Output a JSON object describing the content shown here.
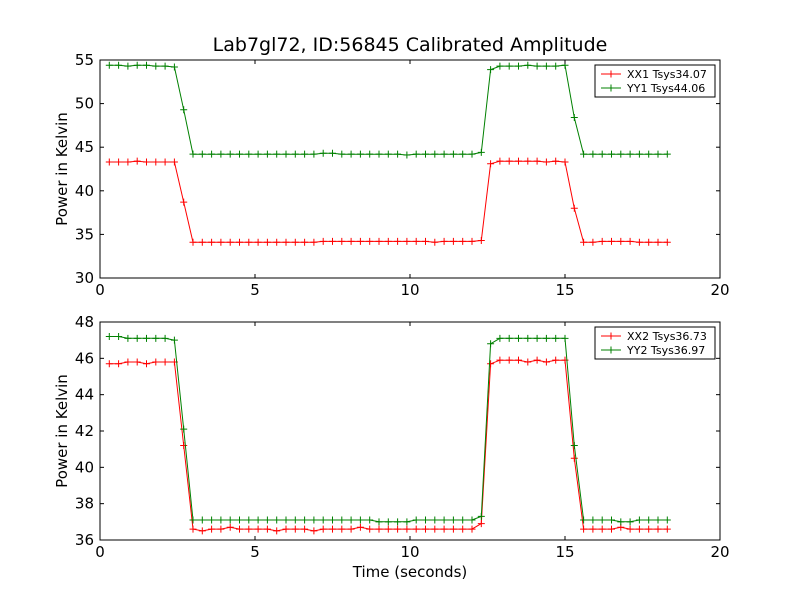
{
  "chart_title": "Lab7gl72, ID:56845 Calibrated Amplitude",
  "chart_data": [
    {
      "type": "line",
      "xlabel": "",
      "ylabel": "Power in Kelvin",
      "xlim": [
        0,
        20
      ],
      "ylim": [
        30,
        55
      ],
      "xticks": [
        0,
        5,
        10,
        15,
        20
      ],
      "yticks": [
        30,
        35,
        40,
        45,
        50,
        55
      ],
      "grid": false,
      "legend_position": "top-right",
      "series": [
        {
          "name": "XX1 Tsys34.07",
          "color": "#ff0000",
          "x": [
            0.3,
            0.6,
            0.9,
            1.2,
            1.5,
            1.8,
            2.1,
            2.4,
            2.7,
            3.0,
            3.3,
            3.6,
            3.9,
            4.2,
            4.5,
            4.8,
            5.1,
            5.4,
            5.7,
            6.0,
            6.3,
            6.6,
            6.9,
            7.2,
            7.5,
            7.8,
            8.1,
            8.4,
            8.7,
            9.0,
            9.3,
            9.6,
            9.9,
            10.2,
            10.5,
            10.8,
            11.1,
            11.4,
            11.7,
            12.0,
            12.3,
            12.6,
            12.9,
            13.2,
            13.5,
            13.8,
            14.1,
            14.4,
            14.7,
            15.0,
            15.3,
            15.6,
            15.9,
            16.2,
            16.5,
            16.8,
            17.1,
            17.4,
            17.7,
            18.0,
            18.3
          ],
          "values": [
            43.3,
            43.3,
            43.3,
            43.4,
            43.3,
            43.3,
            43.3,
            43.3,
            38.7,
            34.1,
            34.1,
            34.1,
            34.1,
            34.1,
            34.1,
            34.1,
            34.1,
            34.1,
            34.1,
            34.1,
            34.1,
            34.1,
            34.1,
            34.2,
            34.2,
            34.2,
            34.2,
            34.2,
            34.2,
            34.2,
            34.2,
            34.2,
            34.2,
            34.2,
            34.2,
            34.1,
            34.2,
            34.2,
            34.2,
            34.2,
            34.3,
            43.1,
            43.4,
            43.4,
            43.4,
            43.4,
            43.4,
            43.3,
            43.4,
            43.3,
            38.0,
            34.1,
            34.1,
            34.2,
            34.2,
            34.2,
            34.2,
            34.1,
            34.1,
            34.1,
            34.1
          ]
        },
        {
          "name": "YY1 Tsys44.06",
          "color": "#008000",
          "x": [
            0.3,
            0.6,
            0.9,
            1.2,
            1.5,
            1.8,
            2.1,
            2.4,
            2.7,
            3.0,
            3.3,
            3.6,
            3.9,
            4.2,
            4.5,
            4.8,
            5.1,
            5.4,
            5.7,
            6.0,
            6.3,
            6.6,
            6.9,
            7.2,
            7.5,
            7.8,
            8.1,
            8.4,
            8.7,
            9.0,
            9.3,
            9.6,
            9.9,
            10.2,
            10.5,
            10.8,
            11.1,
            11.4,
            11.7,
            12.0,
            12.3,
            12.6,
            12.9,
            13.2,
            13.5,
            13.8,
            14.1,
            14.4,
            14.7,
            15.0,
            15.3,
            15.6,
            15.9,
            16.2,
            16.5,
            16.8,
            17.1,
            17.4,
            17.7,
            18.0,
            18.3
          ],
          "values": [
            54.4,
            54.4,
            54.3,
            54.4,
            54.4,
            54.3,
            54.3,
            54.2,
            49.3,
            44.2,
            44.2,
            44.2,
            44.2,
            44.2,
            44.2,
            44.2,
            44.2,
            44.2,
            44.2,
            44.2,
            44.2,
            44.2,
            44.2,
            44.3,
            44.3,
            44.2,
            44.2,
            44.2,
            44.2,
            44.2,
            44.2,
            44.2,
            44.1,
            44.2,
            44.2,
            44.2,
            44.2,
            44.2,
            44.2,
            44.2,
            44.4,
            53.9,
            54.3,
            54.3,
            54.3,
            54.4,
            54.3,
            54.3,
            54.3,
            54.4,
            48.4,
            44.2,
            44.2,
            44.2,
            44.2,
            44.2,
            44.2,
            44.2,
            44.2,
            44.2,
            44.2
          ]
        }
      ]
    },
    {
      "type": "line",
      "xlabel": "Time (seconds)",
      "ylabel": "Power in Kelvin",
      "xlim": [
        0,
        20
      ],
      "ylim": [
        36,
        48
      ],
      "xticks": [
        0,
        5,
        10,
        15,
        20
      ],
      "yticks": [
        36,
        38,
        40,
        42,
        44,
        46,
        48
      ],
      "grid": false,
      "legend_position": "top-right",
      "series": [
        {
          "name": "XX2 Tsys36.73",
          "color": "#ff0000",
          "x": [
            0.3,
            0.6,
            0.9,
            1.2,
            1.5,
            1.8,
            2.1,
            2.4,
            2.7,
            3.0,
            3.3,
            3.6,
            3.9,
            4.2,
            4.5,
            4.8,
            5.1,
            5.4,
            5.7,
            6.0,
            6.3,
            6.6,
            6.9,
            7.2,
            7.5,
            7.8,
            8.1,
            8.4,
            8.7,
            9.0,
            9.3,
            9.6,
            9.9,
            10.2,
            10.5,
            10.8,
            11.1,
            11.4,
            11.7,
            12.0,
            12.3,
            12.6,
            12.9,
            13.2,
            13.5,
            13.8,
            14.1,
            14.4,
            14.7,
            15.0,
            15.3,
            15.6,
            15.9,
            16.2,
            16.5,
            16.8,
            17.1,
            17.4,
            17.7,
            18.0,
            18.3
          ],
          "values": [
            45.7,
            45.7,
            45.8,
            45.8,
            45.7,
            45.8,
            45.8,
            45.8,
            41.2,
            36.6,
            36.5,
            36.6,
            36.6,
            36.7,
            36.6,
            36.6,
            36.6,
            36.6,
            36.5,
            36.6,
            36.6,
            36.6,
            36.5,
            36.6,
            36.6,
            36.6,
            36.6,
            36.7,
            36.6,
            36.6,
            36.6,
            36.6,
            36.6,
            36.6,
            36.6,
            36.6,
            36.6,
            36.6,
            36.6,
            36.6,
            36.9,
            45.7,
            45.9,
            45.9,
            45.9,
            45.8,
            45.9,
            45.8,
            45.9,
            45.9,
            40.5,
            36.6,
            36.6,
            36.6,
            36.6,
            36.7,
            36.6,
            36.6,
            36.6,
            36.6,
            36.6
          ]
        },
        {
          "name": "YY2 Tsys36.97",
          "color": "#008000",
          "x": [
            0.3,
            0.6,
            0.9,
            1.2,
            1.5,
            1.8,
            2.1,
            2.4,
            2.7,
            3.0,
            3.3,
            3.6,
            3.9,
            4.2,
            4.5,
            4.8,
            5.1,
            5.4,
            5.7,
            6.0,
            6.3,
            6.6,
            6.9,
            7.2,
            7.5,
            7.8,
            8.1,
            8.4,
            8.7,
            9.0,
            9.3,
            9.6,
            9.9,
            10.2,
            10.5,
            10.8,
            11.1,
            11.4,
            11.7,
            12.0,
            12.3,
            12.6,
            12.9,
            13.2,
            13.5,
            13.8,
            14.1,
            14.4,
            14.7,
            15.0,
            15.3,
            15.6,
            15.9,
            16.2,
            16.5,
            16.8,
            17.1,
            17.4,
            17.7,
            18.0,
            18.3
          ],
          "values": [
            47.2,
            47.2,
            47.1,
            47.1,
            47.1,
            47.1,
            47.1,
            47.0,
            42.1,
            37.1,
            37.1,
            37.1,
            37.1,
            37.1,
            37.1,
            37.1,
            37.1,
            37.1,
            37.1,
            37.1,
            37.1,
            37.1,
            37.1,
            37.1,
            37.1,
            37.1,
            37.1,
            37.1,
            37.1,
            37.0,
            37.0,
            37.0,
            37.0,
            37.1,
            37.1,
            37.1,
            37.1,
            37.1,
            37.1,
            37.1,
            37.3,
            46.8,
            47.1,
            47.1,
            47.1,
            47.1,
            47.1,
            47.1,
            47.1,
            47.1,
            41.2,
            37.1,
            37.1,
            37.1,
            37.1,
            37.0,
            37.0,
            37.1,
            37.1,
            37.1,
            37.1
          ]
        }
      ]
    }
  ]
}
